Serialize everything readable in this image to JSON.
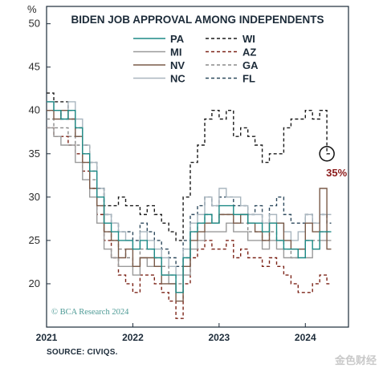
{
  "page": {
    "unit_label": "%",
    "source": "SOURCE: CIVIQS.",
    "copyright": "© BCA Research 2024",
    "watermark": "金色财经"
  },
  "chart_data": {
    "type": "line",
    "title": "BIDEN JOB APPROVAL AMONG INDEPENDENTS",
    "xlabel": "",
    "ylabel": "",
    "xlim": [
      "2021-01",
      "2024-07"
    ],
    "ylim": [
      15,
      52
    ],
    "yticks": [
      20,
      25,
      30,
      35,
      40,
      45,
      50
    ],
    "xticks": [
      "2021",
      "2022",
      "2023",
      "2024"
    ],
    "grid": false,
    "legend_placement": "top",
    "x": [
      "2021-01",
      "2021-02",
      "2021-03",
      "2021-04",
      "2021-05",
      "2021-06",
      "2021-07",
      "2021-08",
      "2021-09",
      "2021-10",
      "2021-11",
      "2021-12",
      "2022-01",
      "2022-02",
      "2022-03",
      "2022-04",
      "2022-05",
      "2022-06",
      "2022-07",
      "2022-08",
      "2022-09",
      "2022-10",
      "2022-11",
      "2022-12",
      "2023-01",
      "2023-02",
      "2023-03",
      "2023-04",
      "2023-05",
      "2023-06",
      "2023-07",
      "2023-08",
      "2023-09",
      "2023-10",
      "2023-11",
      "2023-12",
      "2024-01",
      "2024-02",
      "2024-03",
      "2024-04"
    ],
    "series": [
      {
        "name": "PA",
        "color": "#1d8a86",
        "dash": "solid",
        "values": [
          41,
          40,
          39,
          40,
          38,
          35,
          33,
          30,
          27,
          26,
          25,
          25,
          24,
          25,
          24,
          23,
          21,
          21,
          19,
          23,
          26,
          27,
          28,
          27,
          29,
          29,
          28,
          28,
          27,
          27,
          26,
          27,
          25,
          24,
          24,
          23,
          25,
          24,
          26,
          26
        ]
      },
      {
        "name": "MI",
        "color": "#9a9a9a",
        "dash": "solid",
        "values": [
          38,
          37,
          36,
          36,
          34,
          32,
          30,
          27,
          24,
          23,
          22,
          22,
          21,
          23,
          22,
          22,
          21,
          20,
          19,
          21,
          24,
          25,
          26,
          26,
          26,
          27,
          26,
          26,
          25,
          25,
          24,
          25,
          24,
          23,
          23,
          24,
          23,
          24,
          25,
          25
        ]
      },
      {
        "name": "NV",
        "color": "#7a5a48",
        "dash": "solid",
        "values": [
          40,
          39,
          40,
          39,
          37,
          34,
          31,
          29,
          26,
          25,
          23,
          24,
          22,
          23,
          23,
          22,
          20,
          20,
          18,
          22,
          25,
          26,
          27,
          27,
          28,
          28,
          27,
          28,
          27,
          26,
          25,
          27,
          27,
          25,
          24,
          24,
          27,
          26,
          31,
          24
        ]
      },
      {
        "name": "NC",
        "color": "#a9b6bf",
        "dash": "solid",
        "values": [
          41,
          40,
          40,
          41,
          39,
          36,
          34,
          31,
          28,
          27,
          26,
          25,
          24,
          26,
          25,
          24,
          23,
          22,
          21,
          24,
          27,
          28,
          30,
          29,
          31,
          30,
          30,
          29,
          28,
          28,
          27,
          28,
          27,
          26,
          25,
          26,
          28,
          27,
          28,
          28
        ]
      },
      {
        "name": "WI",
        "color": "#1a1a1a",
        "dash": "4,3",
        "values": [
          42,
          41,
          41,
          40,
          38,
          36,
          34,
          31,
          29,
          29,
          30,
          29,
          29,
          28,
          29,
          28,
          27,
          26,
          25,
          30,
          34,
          36,
          39,
          40,
          39,
          40,
          37,
          38,
          37,
          36,
          34,
          35,
          35,
          38,
          39,
          39,
          40,
          39,
          40,
          35
        ]
      },
      {
        "name": "AZ",
        "color": "#7c2418",
        "dash": "4,3",
        "values": [
          38,
          37,
          37,
          36,
          35,
          33,
          31,
          28,
          25,
          23,
          21,
          20,
          19,
          21,
          21,
          20,
          19,
          18,
          16,
          20,
          23,
          24,
          25,
          24,
          24,
          25,
          23,
          24,
          23,
          23,
          22,
          23,
          22,
          21,
          20,
          19,
          19,
          20,
          21,
          20
        ]
      },
      {
        "name": "GA",
        "color": "#8a8a8a",
        "dash": "4,3",
        "values": [
          39,
          38,
          38,
          37,
          36,
          34,
          32,
          29,
          26,
          25,
          24,
          23,
          22,
          24,
          24,
          23,
          22,
          21,
          20,
          23,
          26,
          27,
          28,
          27,
          28,
          28,
          27,
          27,
          26,
          26,
          25,
          26,
          25,
          24,
          23,
          24,
          25,
          25,
          26,
          26
        ]
      },
      {
        "name": "FL",
        "color": "#2e4a5e",
        "dash": "4,3",
        "values": [
          40,
          40,
          39,
          39,
          37,
          35,
          33,
          31,
          28,
          27,
          26,
          26,
          25,
          27,
          26,
          25,
          24,
          23,
          22,
          25,
          28,
          29,
          30,
          29,
          30,
          30,
          29,
          29,
          28,
          29,
          27,
          29,
          30,
          28,
          27,
          27,
          28,
          27,
          28,
          27
        ]
      }
    ],
    "annotation": {
      "label": "35%",
      "x": "2024-04",
      "y": 35,
      "color": "#8b1a1a"
    }
  }
}
